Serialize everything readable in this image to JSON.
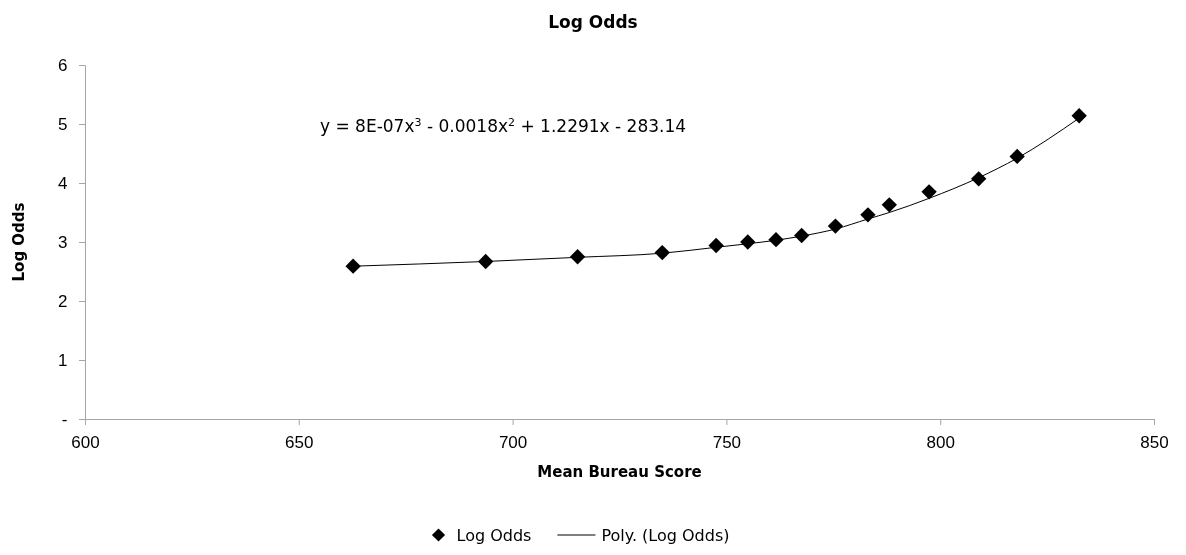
{
  "chart_data": {
    "type": "scatter",
    "title": "Log Odds",
    "xlabel": "Mean Bureau Score",
    "ylabel": "Log Odds",
    "x": [
      662.7,
      693.7,
      715.2,
      735.0,
      747.6,
      755.0,
      761.6,
      767.6,
      775.5,
      783.1,
      788.1,
      797.4,
      809.0,
      818.0,
      832.5
    ],
    "series": [
      {
        "name": "Log Odds",
        "color": "#000000",
        "marker": "diamond",
        "values": [
          2.59,
          2.67,
          2.75,
          2.82,
          2.94,
          3.0,
          3.04,
          3.11,
          3.27,
          3.46,
          3.63,
          3.85,
          4.07,
          4.45,
          5.14
        ]
      },
      {
        "name": "Poly. (Log Odds)",
        "type": "line",
        "color": "#000000",
        "marker": "none",
        "line_style": "solid",
        "x": [
          662.7,
          693.7,
          715.2,
          735.0,
          747.6,
          755.0,
          761.6,
          767.6,
          775.5,
          783.1,
          788.1,
          797.4,
          809.0,
          818.0,
          832.5
        ],
        "values": [
          2.59,
          2.67,
          2.74,
          2.81,
          2.91,
          2.97,
          3.03,
          3.1,
          3.22,
          3.39,
          3.5,
          3.74,
          4.09,
          4.42,
          5.1
        ]
      }
    ],
    "xlim": [
      600,
      850
    ],
    "xticks": [
      600,
      650,
      700,
      750,
      800,
      850
    ],
    "ylim": [
      0,
      6
    ],
    "yticks": [
      {
        "value": 0,
        "label": "-"
      },
      1,
      2,
      3,
      4,
      5,
      6
    ],
    "annotations": [
      "y = 8E-07x$^{3}$ - 0.0018x$^{2}$ + 1.2291x - 283.14"
    ],
    "grid": false,
    "legend": "bottom"
  }
}
